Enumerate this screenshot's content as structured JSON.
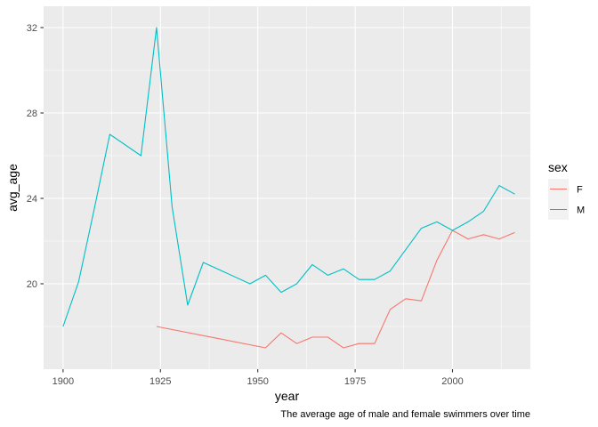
{
  "chart_data": {
    "type": "line",
    "xlabel": "year",
    "ylabel": "avg_age",
    "caption": "The average age of male and female swimmers over time",
    "xlim": [
      1895,
      2020
    ],
    "ylim": [
      16,
      33
    ],
    "x_ticks": [
      1900,
      1925,
      1950,
      1975,
      2000
    ],
    "y_ticks": [
      20,
      24,
      28,
      32
    ],
    "x_tick_labels": [
      "1900",
      "1925",
      "1950",
      "1975",
      "2000"
    ],
    "y_tick_labels": [
      "20",
      "24",
      "28",
      "32"
    ],
    "legend": {
      "title": "sex",
      "position": "right"
    },
    "grid": true,
    "series": [
      {
        "name": "F",
        "color": "#F8766D",
        "points": [
          [
            1924,
            18.0
          ],
          [
            1952,
            17.0
          ],
          [
            1956,
            17.7
          ],
          [
            1960,
            17.2
          ],
          [
            1964,
            17.5
          ],
          [
            1968,
            17.5
          ],
          [
            1972,
            17.0
          ],
          [
            1976,
            17.2
          ],
          [
            1980,
            17.2
          ],
          [
            1984,
            18.8
          ],
          [
            1988,
            19.3
          ],
          [
            1992,
            19.2
          ],
          [
            1996,
            21.1
          ],
          [
            2000,
            22.5
          ],
          [
            2004,
            22.1
          ],
          [
            2008,
            22.3
          ],
          [
            2012,
            22.1
          ],
          [
            2016,
            22.4
          ]
        ]
      },
      {
        "name": "M",
        "color": "#00BFC4",
        "points": [
          [
            1900,
            18.0
          ],
          [
            1904,
            20.1
          ],
          [
            1908,
            23.5
          ],
          [
            1912,
            27.0
          ],
          [
            1920,
            26.0
          ],
          [
            1924,
            32.0
          ],
          [
            1928,
            23.6
          ],
          [
            1932,
            19.0
          ],
          [
            1936,
            21.0
          ],
          [
            1948,
            20.0
          ],
          [
            1952,
            20.4
          ],
          [
            1956,
            19.6
          ],
          [
            1960,
            20.0
          ],
          [
            1964,
            20.9
          ],
          [
            1968,
            20.4
          ],
          [
            1972,
            20.7
          ],
          [
            1976,
            20.2
          ],
          [
            1980,
            20.2
          ],
          [
            1984,
            20.6
          ],
          [
            1988,
            21.6
          ],
          [
            1992,
            22.6
          ],
          [
            1996,
            22.9
          ],
          [
            2000,
            22.5
          ],
          [
            2004,
            22.9
          ],
          [
            2008,
            23.4
          ],
          [
            2012,
            24.6
          ],
          [
            2016,
            24.2
          ]
        ]
      }
    ]
  }
}
